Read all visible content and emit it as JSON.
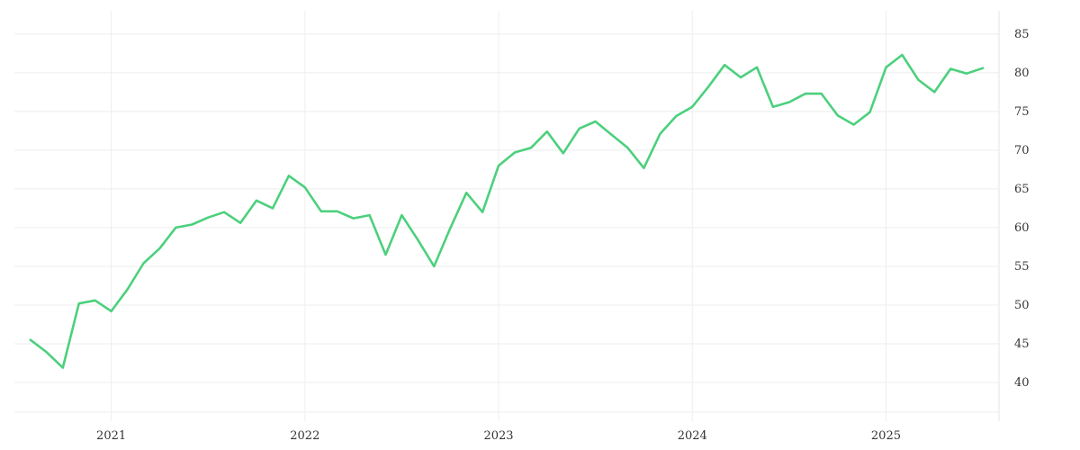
{
  "chart_data": {
    "type": "line",
    "title": "",
    "xlabel": "",
    "ylabel": "",
    "x": [
      "2020-08",
      "2020-09",
      "2020-10",
      "2020-11",
      "2020-12",
      "2021-01",
      "2021-02",
      "2021-03",
      "2021-04",
      "2021-05",
      "2021-06",
      "2021-07",
      "2021-08",
      "2021-09",
      "2021-10",
      "2021-11",
      "2021-12",
      "2022-01",
      "2022-02",
      "2022-03",
      "2022-04",
      "2022-05",
      "2022-06",
      "2022-07",
      "2022-08",
      "2022-09",
      "2022-10",
      "2022-11",
      "2022-12",
      "2023-01",
      "2023-02",
      "2023-03",
      "2023-04",
      "2023-05",
      "2023-06",
      "2023-07",
      "2023-08",
      "2023-09",
      "2023-10",
      "2023-11",
      "2023-12",
      "2024-01",
      "2024-02",
      "2024-03",
      "2024-04",
      "2024-05",
      "2024-06",
      "2024-07",
      "2024-08",
      "2024-09",
      "2024-10",
      "2024-11",
      "2024-12",
      "2025-01",
      "2025-02",
      "2025-03",
      "2025-04",
      "2025-05",
      "2025-06",
      "2025-07"
    ],
    "series": [
      {
        "values": [
          45.5,
          43.9,
          41.9,
          50.2,
          50.6,
          49.2,
          52.0,
          55.4,
          57.3,
          60.0,
          60.4,
          61.3,
          62.0,
          60.6,
          63.5,
          62.5,
          66.7,
          65.2,
          62.1,
          62.1,
          61.2,
          61.6,
          56.5,
          61.6,
          58.4,
          55.0,
          59.9,
          64.5,
          62.0,
          68.0,
          69.7,
          70.3,
          72.4,
          69.6,
          72.8,
          73.7,
          72.0,
          70.3,
          67.7,
          72.1,
          74.4,
          75.6,
          78.2,
          81.0,
          79.4,
          80.7,
          75.6,
          76.2,
          77.3,
          77.3,
          74.5,
          73.3,
          74.9,
          80.7,
          82.3,
          79.1,
          77.5,
          80.5,
          79.9,
          80.6
        ]
      }
    ],
    "x_ticks": [
      "2021",
      "2022",
      "2023",
      "2024",
      "2025"
    ],
    "x_tick_values": [
      "2021-01",
      "2022-01",
      "2023-01",
      "2024-01",
      "2025-01"
    ],
    "y_ticks": [
      40,
      45,
      50,
      55,
      60,
      65,
      70,
      75,
      80,
      85
    ],
    "ylim": [
      35,
      88
    ],
    "xlim": [
      "2020-07",
      "2025-08"
    ],
    "grid": true,
    "legend": "none",
    "y_axis_side": "right",
    "line_color": "#4cd07d"
  }
}
